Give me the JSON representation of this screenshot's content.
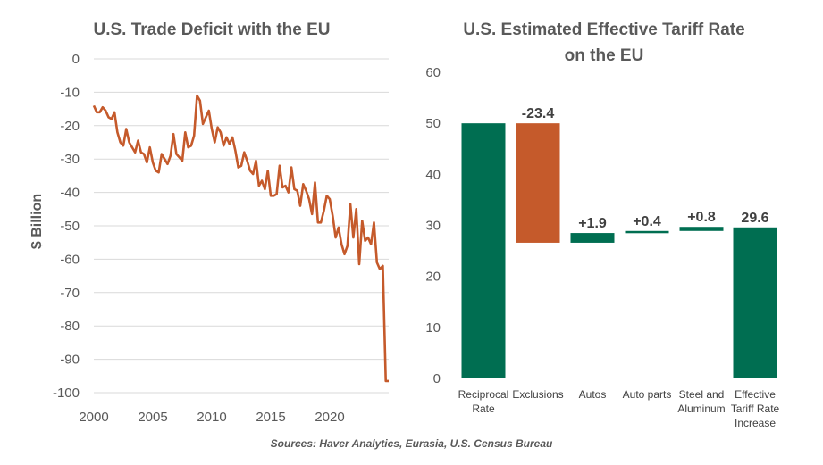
{
  "colors": {
    "orange": "#C55A2B",
    "green": "#006E51",
    "text": "#595959",
    "grid": "#D9D9D9"
  },
  "source": "Sources: Haver Analytics, Eurasia, U.S. Census Bureau",
  "chart_data": [
    {
      "type": "line",
      "title": "U.S. Trade Deficit with the EU",
      "xlabel": "",
      "ylabel": "$ Billion",
      "ylim": [
        -100,
        0
      ],
      "yticks": [
        0,
        -10,
        -20,
        -30,
        -40,
        -50,
        -60,
        -70,
        -80,
        -90,
        -100
      ],
      "xlim": [
        2000,
        2025
      ],
      "xticks": [
        2000,
        2005,
        2010,
        2015,
        2020
      ],
      "series": [
        {
          "name": "U.S. Trade Deficit with the EU",
          "x": [
            2000.0,
            2000.25,
            2000.5,
            2000.75,
            2001.0,
            2001.25,
            2001.5,
            2001.75,
            2002.0,
            2002.25,
            2002.5,
            2002.75,
            2003.0,
            2003.25,
            2003.5,
            2003.75,
            2004.0,
            2004.25,
            2004.5,
            2004.75,
            2005.0,
            2005.25,
            2005.5,
            2005.75,
            2006.0,
            2006.25,
            2006.5,
            2006.75,
            2007.0,
            2007.25,
            2007.5,
            2007.75,
            2008.0,
            2008.25,
            2008.5,
            2008.75,
            2009.0,
            2009.25,
            2009.5,
            2009.75,
            2010.0,
            2010.25,
            2010.5,
            2010.75,
            2011.0,
            2011.25,
            2011.5,
            2011.75,
            2012.0,
            2012.25,
            2012.5,
            2012.75,
            2013.0,
            2013.25,
            2013.5,
            2013.75,
            2014.0,
            2014.25,
            2014.5,
            2014.75,
            2015.0,
            2015.25,
            2015.5,
            2015.75,
            2016.0,
            2016.25,
            2016.5,
            2016.75,
            2017.0,
            2017.25,
            2017.5,
            2017.75,
            2018.0,
            2018.25,
            2018.5,
            2018.75,
            2019.0,
            2019.25,
            2019.5,
            2019.75,
            2020.0,
            2020.25,
            2020.5,
            2020.75,
            2021.0,
            2021.25,
            2021.5,
            2021.75,
            2022.0,
            2022.25,
            2022.5,
            2022.75,
            2023.0,
            2023.25,
            2023.5,
            2023.75,
            2024.0,
            2024.25,
            2024.5,
            2024.75,
            2025.0
          ],
          "y": [
            -14,
            -16,
            -16,
            -14.5,
            -15.5,
            -17.5,
            -18,
            -16,
            -22,
            -25,
            -26,
            -21,
            -25,
            -26.5,
            -28,
            -24.5,
            -28,
            -28.5,
            -31,
            -26.5,
            -31,
            -33.5,
            -34,
            -28.5,
            -30,
            -31.5,
            -29,
            -22.5,
            -28.5,
            -29.5,
            -30.5,
            -22,
            -26.5,
            -26,
            -23,
            -11,
            -12.5,
            -19.5,
            -17.5,
            -15.5,
            -21,
            -25,
            -20.5,
            -22,
            -26,
            -23.5,
            -25.5,
            -23.5,
            -27.5,
            -32.5,
            -32,
            -28,
            -30.5,
            -33.5,
            -34.5,
            -30.5,
            -38,
            -36.5,
            -39,
            -33.5,
            -41,
            -41,
            -40.5,
            -32,
            -38.5,
            -38,
            -40,
            -32.5,
            -39,
            -39.5,
            -44,
            -37.5,
            -39.5,
            -42,
            -46.5,
            -37,
            -49,
            -49,
            -45.5,
            -41,
            -42,
            -47,
            -53.5,
            -50.5,
            -55.5,
            -58.5,
            -56,
            -43.5,
            -53.5,
            -45,
            -61.5,
            -48.5,
            -54.5,
            -53.5,
            -55.5,
            -49,
            -61,
            -63,
            -62,
            -96.5,
            -96.5
          ]
        }
      ]
    },
    {
      "type": "bar",
      "subtype": "waterfall",
      "title": "U.S. Estimated Effective Tariff Rate",
      "title_line2": "on the EU",
      "ylim": [
        0,
        60
      ],
      "yticks": [
        0,
        10,
        20,
        30,
        40,
        50,
        60
      ],
      "categories": [
        "Reciprocal Rate",
        "Exclusions",
        "Autos",
        "Auto parts",
        "Steel and Aluminum",
        "Effective Tariff Rate Increase"
      ],
      "category_lines": [
        [
          "Reciprocal",
          "Rate"
        ],
        [
          "Exclusions"
        ],
        [
          "Autos"
        ],
        [
          "Auto parts"
        ],
        [
          "Steel and",
          "Aluminum"
        ],
        [
          "Effective",
          "Tariff Rate",
          "Increase"
        ]
      ],
      "bars": [
        {
          "base": 0,
          "top": 50,
          "color": "green",
          "label": ""
        },
        {
          "base": 26.6,
          "top": 50,
          "color": "orange",
          "label": "-23.4"
        },
        {
          "base": 26.6,
          "top": 28.5,
          "color": "green",
          "label": "+1.9"
        },
        {
          "base": 28.5,
          "top": 28.9,
          "color": "green",
          "label": "+0.4"
        },
        {
          "base": 28.9,
          "top": 29.7,
          "color": "green",
          "label": "+0.8"
        },
        {
          "base": 0,
          "top": 29.6,
          "color": "green",
          "label": "29.6"
        }
      ]
    }
  ]
}
